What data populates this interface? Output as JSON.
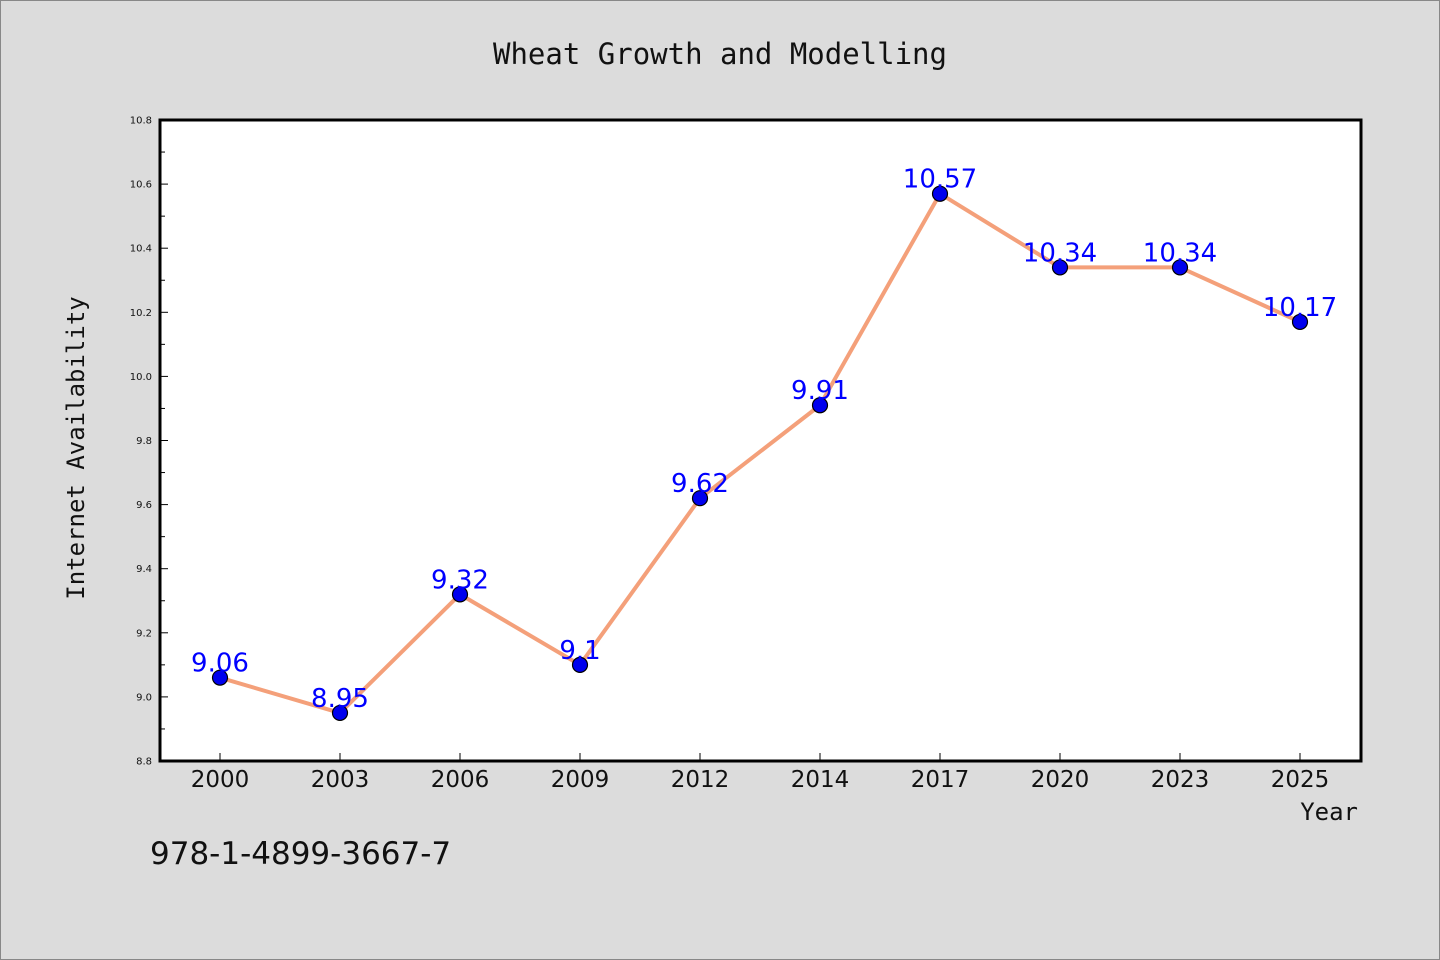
{
  "chart_data": {
    "type": "line",
    "title": "Wheat Growth and Modelling",
    "xlabel": "Year",
    "ylabel": "Internet Availability",
    "categories": [
      "2000",
      "2003",
      "2006",
      "2009",
      "2012",
      "2014",
      "2017",
      "2020",
      "2023",
      "2025"
    ],
    "values": [
      9.06,
      8.95,
      9.32,
      9.1,
      9.62,
      9.91,
      10.57,
      10.34,
      10.34,
      10.17
    ],
    "data_labels": [
      "9.06",
      "8.95",
      "9.32",
      "9.1",
      "9.62",
      "9.91",
      "10.57",
      "10.34",
      "10.34",
      "10.17"
    ],
    "ylim": [
      8.8,
      10.8
    ],
    "yticks": [
      "8.8",
      "9.0",
      "9.2",
      "9.4",
      "9.6",
      "9.8",
      "10.0",
      "10.2",
      "10.4",
      "10.6",
      "10.8"
    ],
    "grid": false,
    "legend": false,
    "colors": {
      "line": "#f4a07a",
      "marker": "#0000ee",
      "marker_edge": "#000000",
      "data_label": "#0000ff",
      "plot_background": "#ffffff",
      "figure_background": "#dcdcdc"
    }
  },
  "annotation": {
    "isbn": "978-1-4899-3667-7"
  }
}
